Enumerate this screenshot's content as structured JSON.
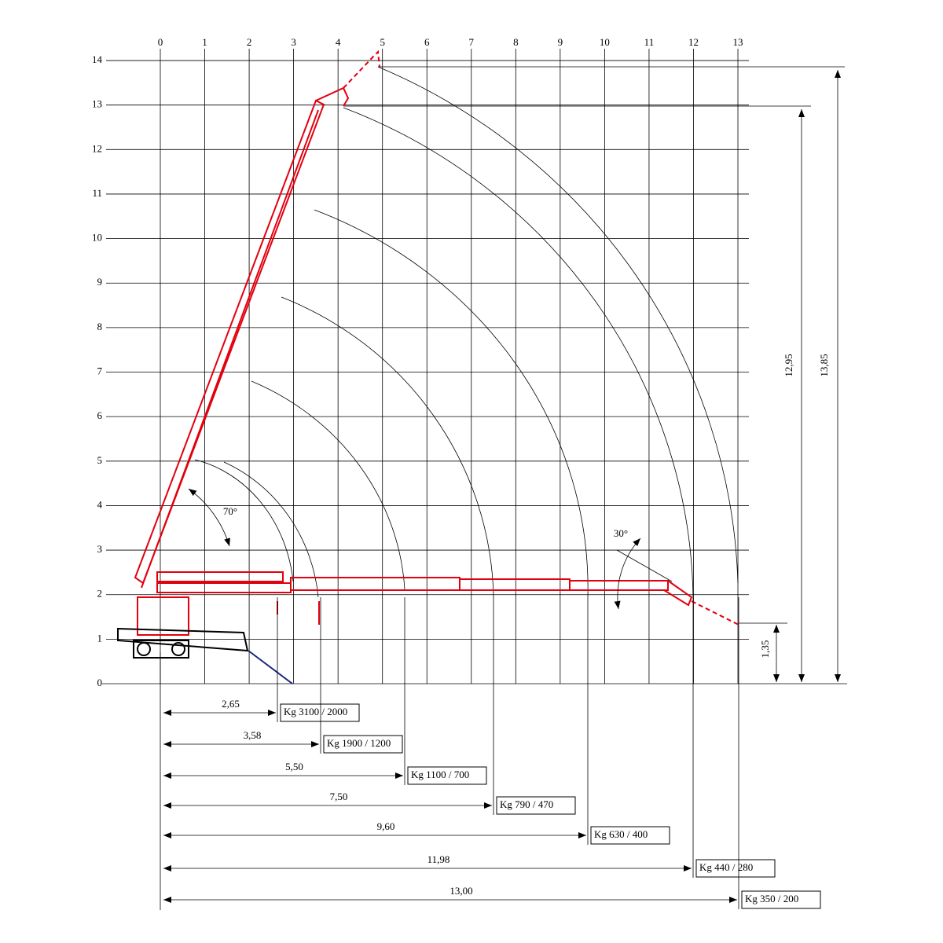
{
  "grid": {
    "x_labels": [
      "0",
      "1",
      "2",
      "3",
      "4",
      "5",
      "6",
      "7",
      "8",
      "9",
      "10",
      "11",
      "12",
      "13"
    ],
    "y_labels": [
      "0",
      "1",
      "2",
      "3",
      "4",
      "5",
      "6",
      "7",
      "8",
      "9",
      "10",
      "11",
      "12",
      "13",
      "14"
    ]
  },
  "angles": {
    "upper": "70°",
    "lower": "30°"
  },
  "heights": {
    "max": "13,85",
    "boom": "12,95",
    "low": "1,35"
  },
  "reach": [
    {
      "distance": "2,65",
      "load": "Kg  3100 / 2000"
    },
    {
      "distance": "3,58",
      "load": "Kg  1900 / 1200"
    },
    {
      "distance": "5,50",
      "load": "Kg  1100 / 700"
    },
    {
      "distance": "7,50",
      "load": "Kg  790 / 470"
    },
    {
      "distance": "9,60",
      "load": "Kg  630 / 400"
    },
    {
      "distance": "11,98",
      "load": "Kg  440 / 280"
    },
    {
      "distance": "13,00",
      "load": "Kg  350 / 200"
    }
  ]
}
